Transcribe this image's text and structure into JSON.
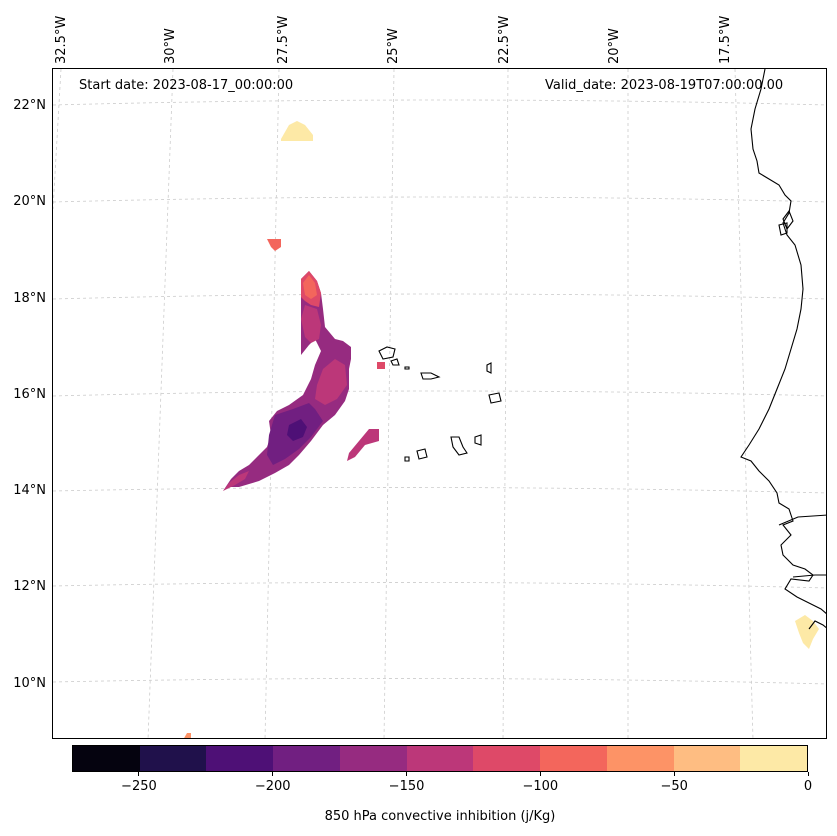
{
  "map": {
    "start_date": "Start date: 2023-08-17_00:00:00",
    "valid_date": "Valid_date: 2023-08-19T07:00:00.00",
    "lat_labels": [
      "22°N",
      "20°N",
      "18°N",
      "16°N",
      "14°N",
      "12°N",
      "10°N"
    ],
    "lon_labels": [
      "32.5°W",
      "30°W",
      "27.5°W",
      "25°W",
      "22.5°W",
      "20°W",
      "17.5°W"
    ],
    "colors": {
      "coastline": "#000000",
      "gridline": "#cccccc"
    }
  },
  "colorbar": {
    "label": "850 hPa convective inhibition (j/Kg)",
    "levels": [
      -275,
      -250,
      -225,
      -200,
      -175,
      -150,
      -125,
      -100,
      -75,
      -50,
      -25,
      0
    ],
    "tick_labels": [
      "−250",
      "−200",
      "−150",
      "−100",
      "−50",
      "0"
    ],
    "tick_values": [
      -250,
      -200,
      -150,
      -100,
      -50,
      0
    ],
    "colors": [
      "#05030f",
      "#20114b",
      "#4e1076",
      "#711f81",
      "#962b80",
      "#bc3779",
      "#de4968",
      "#f3665c",
      "#fd9366",
      "#febd82",
      "#fde9a6"
    ]
  }
}
